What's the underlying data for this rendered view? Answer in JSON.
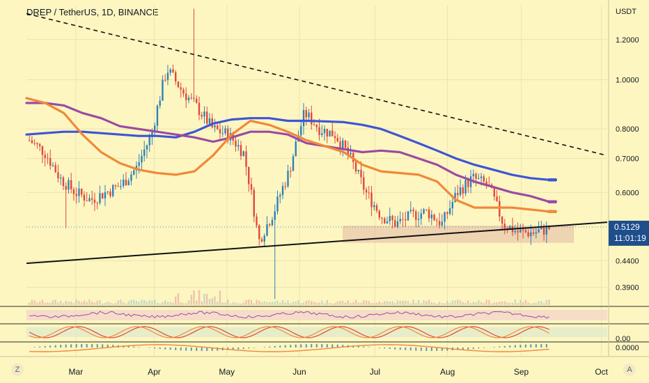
{
  "title": "DREP / TetherUS, 1D, BINANCE",
  "currency": "USDT",
  "price_label": "0.5129",
  "timer_label": "11:01:19",
  "corner_left": "Z",
  "corner_right": "A",
  "colors": {
    "background": "#fdf6c0",
    "up": "#2f80b8",
    "down": "#e0473c",
    "ma_blue": "#3d55d6",
    "ma_purple": "#9c4aa3",
    "ma_orange": "#f0883a",
    "price_tag": "#1f4e8c"
  },
  "chart_data": [
    {
      "type": "candlestick",
      "title": "DREP / TetherUS, 1D, BINANCE",
      "yscale": "log",
      "ylim": [
        0.36,
        1.4
      ],
      "y_ticks": [
        "1.2000",
        "1.0000",
        "0.8000",
        "0.7000",
        "0.6000",
        "0.5129",
        "0.4400",
        "0.3900"
      ],
      "y_tick_values": [
        1.2,
        1.0,
        0.8,
        0.7,
        0.6,
        0.5129,
        0.44,
        0.39
      ],
      "x_ticks": [
        "Mar",
        "Apr",
        "May",
        "Jun",
        "Jul",
        "Aug",
        "Sep",
        "Oct"
      ],
      "series": [
        {
          "name": "",
          "color": "#3d55d6",
          "values": [
            0.78,
            0.785,
            0.79,
            0.79,
            0.785,
            0.78,
            0.775,
            0.775,
            0.77,
            0.79,
            0.82,
            0.835,
            0.84,
            0.84,
            0.83,
            0.83,
            0.828,
            0.825,
            0.815,
            0.8,
            0.775,
            0.75,
            0.725,
            0.7,
            0.68,
            0.665,
            0.65,
            0.64,
            0.635
          ]
        },
        {
          "name": "",
          "color": "#9c4aa3",
          "values": [
            0.9,
            0.9,
            0.89,
            0.86,
            0.84,
            0.81,
            0.8,
            0.79,
            0.78,
            0.77,
            0.755,
            0.77,
            0.79,
            0.79,
            0.78,
            0.75,
            0.74,
            0.73,
            0.72,
            0.725,
            0.72,
            0.7,
            0.68,
            0.65,
            0.63,
            0.615,
            0.6,
            0.59,
            0.575
          ]
        },
        {
          "name": "",
          "color": "#f0883a",
          "values": [
            0.92,
            0.9,
            0.86,
            0.78,
            0.72,
            0.685,
            0.665,
            0.655,
            0.65,
            0.66,
            0.71,
            0.78,
            0.83,
            0.815,
            0.79,
            0.76,
            0.74,
            0.72,
            0.68,
            0.66,
            0.655,
            0.65,
            0.63,
            0.58,
            0.56,
            0.56,
            0.56,
            0.555,
            0.55
          ]
        }
      ],
      "trendlines": [
        {
          "name": "",
          "style": "dashed",
          "points": [
            [
              "Feb",
              1.35
            ],
            [
              "Sep-end",
              0.71
            ]
          ]
        },
        {
          "name": "",
          "style": "solid",
          "points": [
            [
              "Feb",
              0.435
            ],
            [
              "Oct",
              0.524
            ]
          ]
        }
      ],
      "zone": {
        "low": 0.478,
        "high": 0.515,
        "from": "Jun",
        "to": "Sep"
      },
      "last_price": 0.5129
    },
    {
      "type": "line",
      "panel": "oscillator-1",
      "series": [
        {
          "name": "",
          "color": "#9c4aa3"
        }
      ]
    },
    {
      "type": "line",
      "panel": "oscillator-2",
      "y_ticks": [
        "0.00"
      ],
      "series": [
        {
          "name": "",
          "color": "#e0473c"
        },
        {
          "name": "",
          "color": "#f0883a"
        }
      ]
    },
    {
      "type": "bar",
      "panel": "macd",
      "y_ticks": [
        "0.0000"
      ],
      "series": [
        {
          "name": "",
          "color": "#2f80b8"
        },
        {
          "name": "",
          "color": "#f0883a"
        }
      ]
    }
  ]
}
